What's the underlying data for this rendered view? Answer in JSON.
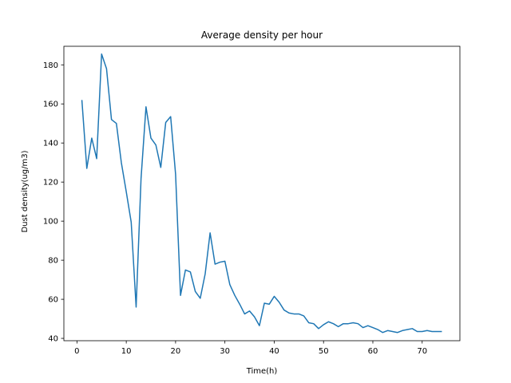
{
  "chart_data": {
    "type": "line",
    "title": "Average density per hour",
    "xlabel": "Time(h)",
    "ylabel": "Dust density(ug/m3)",
    "xlim": [
      -2.65,
      77.65
    ],
    "ylim": [
      38.8,
      189.5
    ],
    "xticks": [
      0,
      10,
      20,
      30,
      40,
      50,
      60,
      70
    ],
    "yticks": [
      40,
      60,
      80,
      100,
      120,
      140,
      160,
      180
    ],
    "grid": false,
    "line_color": "#1f77b4",
    "series": [
      {
        "x": [
          1,
          2,
          3,
          4,
          5,
          6,
          7,
          8,
          9,
          10,
          11,
          12,
          13,
          14,
          15,
          16,
          17,
          18,
          19,
          20,
          21,
          22,
          23,
          24,
          25,
          26,
          27,
          28,
          29,
          30,
          31,
          32,
          33,
          34,
          35,
          36,
          37,
          38,
          39,
          40,
          41,
          42,
          43,
          44,
          45,
          46,
          47,
          48,
          49,
          50,
          51,
          52,
          53,
          54,
          55,
          56,
          57,
          58,
          59,
          60,
          61,
          62,
          63,
          64,
          65,
          66,
          67,
          68,
          69,
          70,
          71,
          72,
          73,
          74
        ],
        "values": [
          162,
          127,
          142.5,
          132,
          185.5,
          178,
          152,
          150,
          130,
          115,
          99.5,
          56,
          122,
          158.5,
          142.5,
          139,
          127.5,
          150.5,
          153.5,
          124,
          62,
          75,
          74,
          64,
          60.5,
          73,
          94,
          78,
          79,
          79.5,
          67.5,
          62,
          57.5,
          52.5,
          54,
          51,
          46.5,
          58,
          57.5,
          61.5,
          58.5,
          54.5,
          53,
          52.5,
          52.5,
          51.5,
          48,
          47.5,
          45,
          47,
          48.5,
          47.5,
          46,
          47.5,
          47.5,
          48,
          47.5,
          45.5,
          46.5,
          45.5,
          44.5,
          43,
          44,
          43.5,
          43,
          44,
          44.5,
          45,
          43.5,
          43.5,
          44,
          43.5,
          43.5,
          43.5
        ]
      }
    ]
  }
}
